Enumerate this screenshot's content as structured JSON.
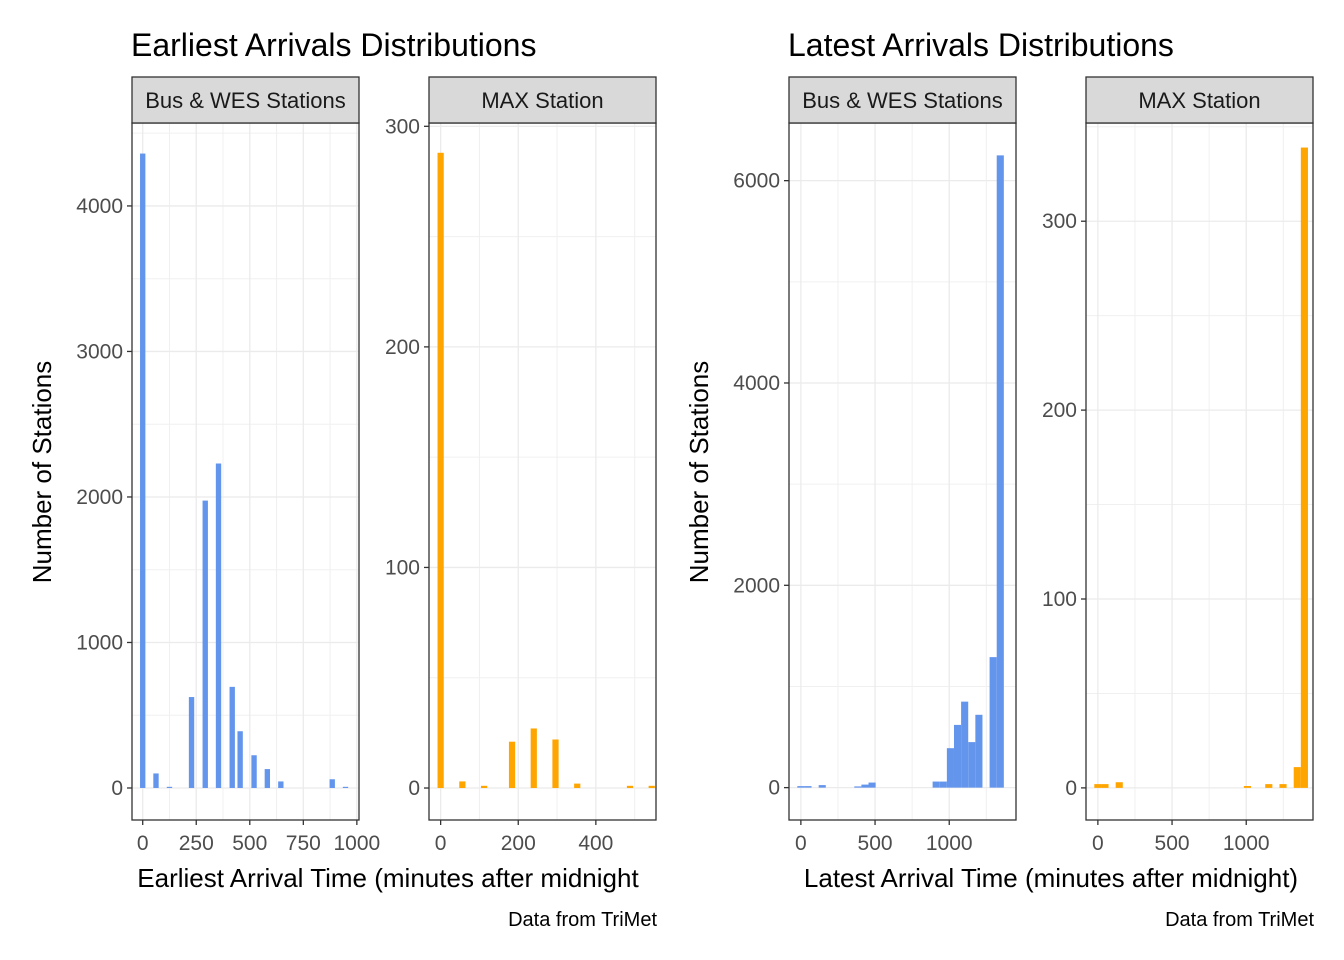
{
  "chart_data": [
    {
      "type": "bar",
      "title": "Earliest Arrivals Distributions",
      "xlabel": "Earliest Arrival Time (minutes after midnight",
      "ylabel": "Number of Stations",
      "caption": "Data from TriMet",
      "grid": true,
      "panels": [
        {
          "strip": "Bus & WES Stations",
          "color": "#6495ED",
          "xlim": [
            -50,
            1010
          ],
          "ylim": [
            -220,
            4570
          ],
          "xticks": [
            0,
            250,
            500,
            750,
            1000
          ],
          "xtick_labels": [
            "0",
            "250",
            "500",
            "750",
            "1000"
          ],
          "yticks": [
            0,
            1000,
            2000,
            3000,
            4000
          ],
          "ytick_labels": [
            "0",
            "1000",
            "2000",
            "3000",
            "4000"
          ],
          "binwidth": 25,
          "bins": [
            {
              "x": 0,
              "y": 4360
            },
            {
              "x": 62,
              "y": 100
            },
            {
              "x": 125,
              "y": 8
            },
            {
              "x": 228,
              "y": 625
            },
            {
              "x": 292,
              "y": 1975
            },
            {
              "x": 354,
              "y": 2230
            },
            {
              "x": 418,
              "y": 695
            },
            {
              "x": 455,
              "y": 390
            },
            {
              "x": 520,
              "y": 225
            },
            {
              "x": 582,
              "y": 130
            },
            {
              "x": 645,
              "y": 45
            },
            {
              "x": 885,
              "y": 60
            },
            {
              "x": 947,
              "y": 8
            }
          ]
        },
        {
          "strip": "MAX Station",
          "color": "#FFA500",
          "xlim": [
            -30,
            555
          ],
          "ylim": [
            -14.5,
            301.5
          ],
          "xticks": [
            0,
            200,
            400
          ],
          "xtick_labels": [
            "0",
            "200",
            "400"
          ],
          "yticks": [
            0,
            100,
            200,
            300
          ],
          "ytick_labels": [
            "0",
            "100",
            "200",
            "300"
          ],
          "binwidth": 16,
          "bins": [
            {
              "x": 0,
              "y": 288
            },
            {
              "x": 56,
              "y": 3
            },
            {
              "x": 112,
              "y": 1
            },
            {
              "x": 184,
              "y": 21
            },
            {
              "x": 240,
              "y": 27
            },
            {
              "x": 296,
              "y": 22
            },
            {
              "x": 352,
              "y": 2
            },
            {
              "x": 488,
              "y": 1
            },
            {
              "x": 544,
              "y": 1
            }
          ]
        }
      ]
    },
    {
      "type": "bar",
      "title": "Latest Arrivals Distributions",
      "xlabel": "Latest Arrival Time (minutes after midnight)",
      "ylabel": "Number of Stations",
      "caption": "Data from TriMet",
      "grid": true,
      "panels": [
        {
          "strip": "Bus & WES Stations",
          "color": "#6495ED",
          "xlim": [
            -80,
            1450
          ],
          "ylim": [
            -320,
            6570
          ],
          "xticks": [
            0,
            500,
            1000
          ],
          "xtick_labels": [
            "0",
            "500",
            "1000"
          ],
          "yticks": [
            0,
            2000,
            4000,
            6000
          ],
          "ytick_labels": [
            "0",
            "2000",
            "4000",
            "6000"
          ],
          "binwidth": 48,
          "bins": [
            {
              "x": 0,
              "y": 15
            },
            {
              "x": 48,
              "y": 15
            },
            {
              "x": 144,
              "y": 25
            },
            {
              "x": 384,
              "y": 12
            },
            {
              "x": 432,
              "y": 30
            },
            {
              "x": 480,
              "y": 50
            },
            {
              "x": 912,
              "y": 60
            },
            {
              "x": 960,
              "y": 60
            },
            {
              "x": 1008,
              "y": 390
            },
            {
              "x": 1056,
              "y": 620
            },
            {
              "x": 1104,
              "y": 850
            },
            {
              "x": 1152,
              "y": 450
            },
            {
              "x": 1200,
              "y": 720
            },
            {
              "x": 1296,
              "y": 1290
            },
            {
              "x": 1344,
              "y": 6250
            }
          ]
        },
        {
          "strip": "MAX Station",
          "color": "#FFA500",
          "xlim": [
            -80,
            1450
          ],
          "ylim": [
            -17,
            352
          ],
          "xticks": [
            0,
            500,
            1000
          ],
          "xtick_labels": [
            "0",
            "500",
            "1000"
          ],
          "yticks": [
            0,
            100,
            200,
            300
          ],
          "ytick_labels": [
            "0",
            "100",
            "200",
            "300"
          ],
          "binwidth": 48,
          "bins": [
            {
              "x": 0,
              "y": 2
            },
            {
              "x": 48,
              "y": 2
            },
            {
              "x": 144,
              "y": 3
            },
            {
              "x": 1008,
              "y": 1
            },
            {
              "x": 1152,
              "y": 2
            },
            {
              "x": 1248,
              "y": 2
            },
            {
              "x": 1344,
              "y": 11
            },
            {
              "x": 1392,
              "y": 339
            }
          ]
        }
      ]
    }
  ]
}
